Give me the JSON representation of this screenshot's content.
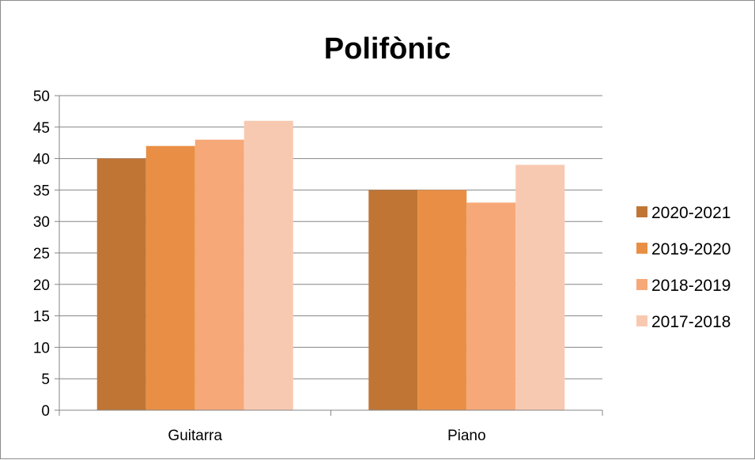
{
  "chart_data": {
    "type": "bar",
    "title": "Polifònic",
    "categories": [
      "Guitarra",
      "Piano"
    ],
    "series": [
      {
        "name": "2020-2021",
        "color": "#C07535",
        "values": [
          40,
          35
        ]
      },
      {
        "name": "2019-2020",
        "color": "#E98F45",
        "values": [
          42,
          35
        ]
      },
      {
        "name": "2018-2019",
        "color": "#F7A878",
        "values": [
          43,
          33
        ]
      },
      {
        "name": "2017-2018",
        "color": "#F8C9B1",
        "values": [
          46,
          39
        ]
      }
    ],
    "ylim": [
      0,
      50
    ],
    "yticks": [
      0,
      5,
      10,
      15,
      20,
      25,
      30,
      35,
      40,
      45,
      50
    ],
    "grid": true,
    "legend": "right"
  }
}
